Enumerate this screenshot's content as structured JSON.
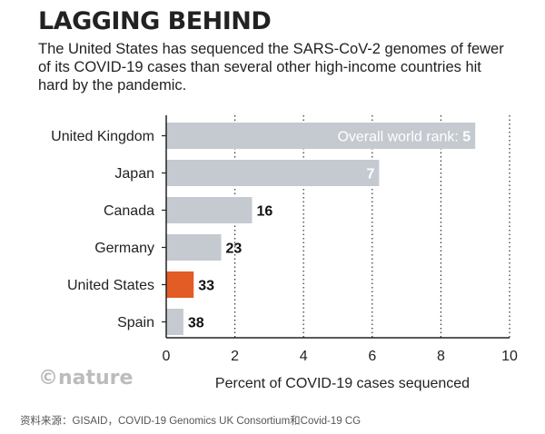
{
  "header": {
    "title": "LAGGING BEHIND",
    "subtitle": "The United States has sequenced the SARS-CoV-2 genomes of fewer of its COVID-19 cases than several other high-income countries hit hard by the pandemic."
  },
  "brand": "©nature",
  "source": "资料来源：GISAID，COVID-19 Genomics UK Consortium和Covid-19 CG",
  "colors": {
    "bar": "#c5c9d0",
    "highlight": "#e35b25",
    "axis": "#222222",
    "grid": "#333333"
  },
  "chart_data": {
    "type": "bar",
    "orientation": "horizontal",
    "categories": [
      "United Kingdom",
      "Japan",
      "Canada",
      "Germany",
      "United States",
      "Spain"
    ],
    "values": [
      9.0,
      6.2,
      2.5,
      1.6,
      0.8,
      0.5
    ],
    "data_labels": [
      "Overall world rank: 5",
      "7",
      "16",
      "23",
      "33",
      "38"
    ],
    "highlight_category": "United States",
    "xlabel": "Percent of COVID-19 cases sequenced",
    "ylabel": "",
    "xlim": [
      0,
      10
    ],
    "xticks": [
      0,
      2,
      4,
      6,
      8,
      10
    ],
    "grid": true
  }
}
